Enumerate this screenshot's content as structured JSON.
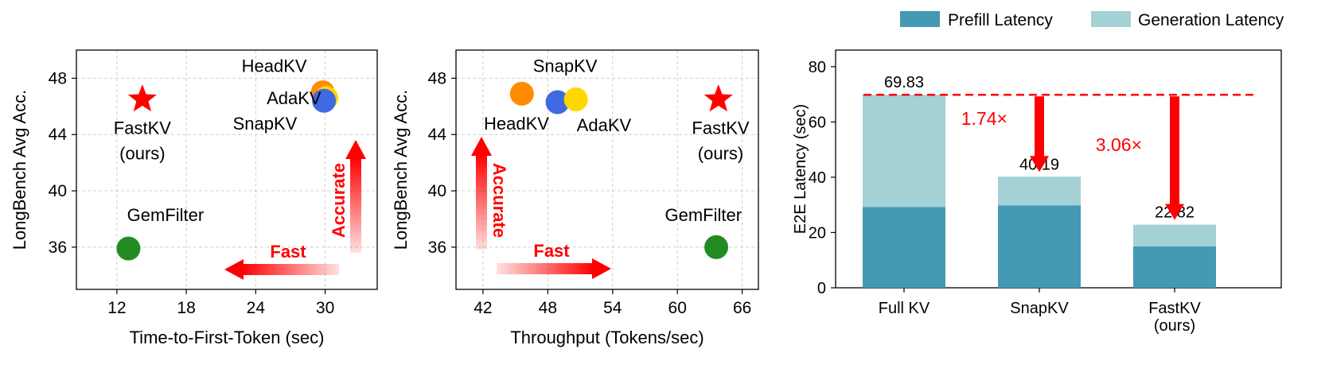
{
  "colors": {
    "fastkv": "#ff0000",
    "headkv": "#ff8c00",
    "adakv": "#ffd700",
    "snapkv": "#4169e1",
    "gemfilter": "#228b22",
    "prefill": "#4499b4",
    "generation": "#a3d1d5",
    "annotation": "#ff0000",
    "grid": "#d0d0d0"
  },
  "chart_data": [
    {
      "type": "scatter",
      "xlabel": "Time-to-First-Token (sec)",
      "ylabel": "LongBench Avg Acc.",
      "xlim": [
        8.5,
        34.5
      ],
      "ylim": [
        33,
        50
      ],
      "xticks": [
        "12",
        "18",
        "24",
        "30"
      ],
      "yticks": [
        "36",
        "40",
        "44",
        "48"
      ],
      "grid": true,
      "points": [
        {
          "name": "HeadKV",
          "x": 29.8,
          "y": 47.0,
          "marker": "circle",
          "color_key": "headkv"
        },
        {
          "name": "AdaKV",
          "x": 30.1,
          "y": 46.6,
          "marker": "circle",
          "color_key": "adakv"
        },
        {
          "name": "SnapKV",
          "x": 29.9,
          "y": 46.4,
          "marker": "circle",
          "color_key": "snapkv"
        },
        {
          "name": "FastKV",
          "x": 14.2,
          "y": 46.5,
          "marker": "star",
          "color_key": "fastkv"
        },
        {
          "name": "GemFilter",
          "x": 13.0,
          "y": 35.9,
          "marker": "circle",
          "color_key": "gemfilter"
        }
      ],
      "labels": [
        {
          "text": "HeadKV",
          "x": 25.6,
          "y": 48.9
        },
        {
          "text": "AdaKV",
          "x": 27.3,
          "y": 46.6
        },
        {
          "text": "SnapKV",
          "x": 24.8,
          "y": 44.8
        },
        {
          "text": "FastKV",
          "x": 14.2,
          "y": 44.5
        },
        {
          "text": "(ours)",
          "x": 14.2,
          "y": 42.7
        },
        {
          "text": "GemFilter",
          "x": 16.2,
          "y": 38.3
        }
      ],
      "arrows": [
        {
          "label": "Fast",
          "direction": "left"
        },
        {
          "label": "Accurate",
          "direction": "up"
        }
      ]
    },
    {
      "type": "scatter",
      "xlabel": "Throughput (Tokens/sec)",
      "ylabel": "LongBench Avg Acc.",
      "xlim": [
        39.5,
        67.5
      ],
      "ylim": [
        33,
        50
      ],
      "xticks": [
        "42",
        "48",
        "54",
        "60",
        "66"
      ],
      "yticks": [
        "36",
        "40",
        "44",
        "48"
      ],
      "grid": true,
      "points": [
        {
          "name": "HeadKV",
          "x": 45.6,
          "y": 46.9,
          "marker": "circle",
          "color_key": "headkv"
        },
        {
          "name": "SnapKV",
          "x": 48.9,
          "y": 46.3,
          "marker": "circle",
          "color_key": "snapkv"
        },
        {
          "name": "AdaKV",
          "x": 50.6,
          "y": 46.5,
          "marker": "circle",
          "color_key": "adakv"
        },
        {
          "name": "FastKV",
          "x": 63.8,
          "y": 46.5,
          "marker": "star",
          "color_key": "fastkv"
        },
        {
          "name": "GemFilter",
          "x": 63.6,
          "y": 36.0,
          "marker": "circle",
          "color_key": "gemfilter"
        }
      ],
      "labels": [
        {
          "text": "SnapKV",
          "x": 49.6,
          "y": 48.9
        },
        {
          "text": "HeadKV",
          "x": 45.1,
          "y": 44.8
        },
        {
          "text": "AdaKV",
          "x": 53.2,
          "y": 44.7
        },
        {
          "text": "FastKV",
          "x": 64.0,
          "y": 44.5
        },
        {
          "text": "(ours)",
          "x": 64.0,
          "y": 42.7
        },
        {
          "text": "GemFilter",
          "x": 62.4,
          "y": 38.3
        }
      ],
      "arrows": [
        {
          "label": "Fast",
          "direction": "right"
        },
        {
          "label": "Accurate",
          "direction": "up"
        }
      ]
    },
    {
      "type": "bar",
      "stacked": true,
      "categories": [
        "Full KV",
        "SnapKV",
        "FastKV\n(ours)"
      ],
      "series": [
        {
          "name": "Prefill Latency",
          "values": [
            29.2,
            29.8,
            15.0
          ],
          "color_key": "prefill"
        },
        {
          "name": "Generation Latency",
          "values": [
            40.63,
            10.39,
            7.82
          ],
          "color_key": "generation"
        }
      ],
      "totals": [
        "69.83",
        "40.19",
        "22.82"
      ],
      "ylabel": "E2E Latency (sec)",
      "ylim": [
        0,
        86
      ],
      "yticks": [
        "0",
        "20",
        "40",
        "60",
        "80"
      ],
      "grid": false,
      "legend": "top",
      "reference_line": 69.83,
      "annotations": [
        {
          "text": "1.74×",
          "from": 69.83,
          "to": 40.19
        },
        {
          "text": "3.06×",
          "from": 69.83,
          "to": 22.82
        }
      ]
    }
  ]
}
